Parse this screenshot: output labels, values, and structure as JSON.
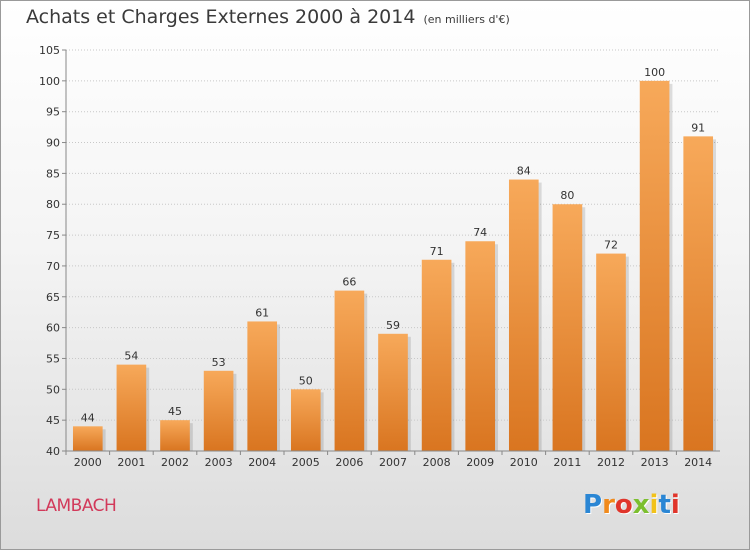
{
  "header": {
    "title": "Achats et Charges Externes 2000 à 2014",
    "unit": "(en milliers d'€)"
  },
  "footer": {
    "place": "LAMBACH",
    "logo_letters": [
      "P",
      "r",
      "o",
      "x",
      "i",
      "t",
      "i"
    ],
    "logo_colors": [
      "#2a86d4",
      "#f08a1c",
      "#e0352b",
      "#7cbf2f",
      "#f2c21a",
      "#2a86d4",
      "#e0352b"
    ]
  },
  "colors": {
    "bar_top": "#f7a95a",
    "bar_bottom": "#d97520",
    "grid": "#c8c8c8",
    "text": "#333333"
  },
  "chart_data": {
    "type": "bar",
    "title": "Achats et Charges Externes 2000 à 2014",
    "subtitle": "(en milliers d'€)",
    "categories": [
      "2000",
      "2001",
      "2002",
      "2003",
      "2004",
      "2005",
      "2006",
      "2007",
      "2008",
      "2009",
      "2010",
      "2011",
      "2012",
      "2013",
      "2014"
    ],
    "values": [
      44,
      54,
      45,
      53,
      61,
      50,
      66,
      59,
      71,
      74,
      84,
      80,
      72,
      100,
      91
    ],
    "ylim": [
      40,
      105
    ],
    "yticks": [
      40,
      45,
      50,
      55,
      60,
      65,
      70,
      75,
      80,
      85,
      90,
      95,
      100,
      105
    ],
    "grid": true,
    "data_labels": true
  }
}
